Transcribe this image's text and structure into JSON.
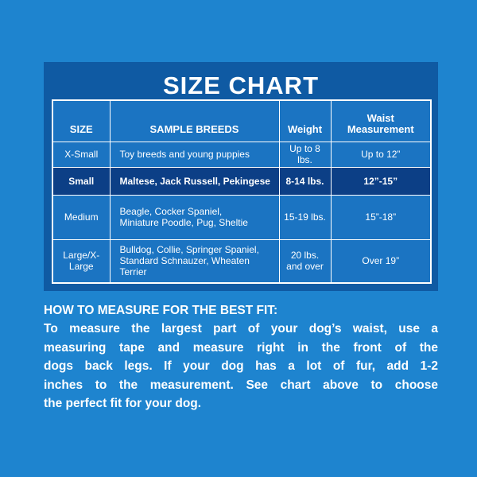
{
  "header": {
    "title": "SIZE CHART"
  },
  "table": {
    "columns": [
      "SIZE",
      "SAMPLE BREEDS",
      "Weight",
      "Waist\nMeasurement"
    ],
    "rows": [
      [
        "X-Small",
        "Toy breeds and young puppies",
        "Up to 8 lbs.",
        "Up to 12”"
      ],
      [
        "Small",
        "Maltese, Jack Russell, Pekingese",
        "8-14 lbs.",
        "12”-15”"
      ],
      [
        "Medium",
        "Beagle, Cocker Spaniel,\nMiniature Poodle, Pug, Sheltie",
        "15-19 lbs.",
        "15”-18”"
      ],
      [
        "Large/X-Large",
        "Bulldog, Collie, Springer Spaniel,\nStandard Schnauzer, Wheaten Terrier",
        "20 lbs.\nand over",
        "Over 19”"
      ]
    ]
  },
  "instructions": {
    "heading": "HOW TO MEASURE FOR THE BEST FIT:",
    "lines": [
      "To measure the largest part of your dog’s waist, use a",
      "measuring tape and measure right in the front of the",
      "dogs back legs. If your dog has a lot of fur, add 1-2",
      "inches to the measurement. See chart above to choose",
      "the perfect fit for your dog."
    ]
  }
}
